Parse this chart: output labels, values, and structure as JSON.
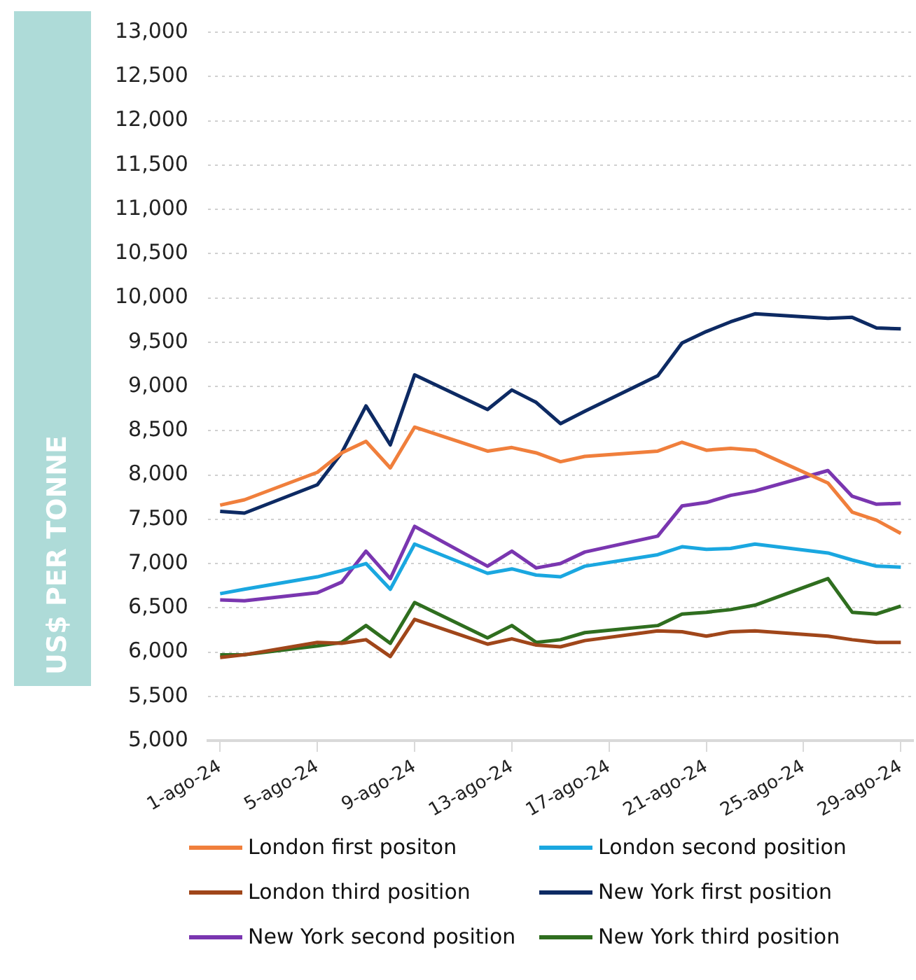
{
  "chart_data": {
    "type": "line",
    "ylabel": "US$ PER TONNE",
    "x": [
      "--08-01",
      "--08-02",
      "--08-05",
      "--08-06",
      "--08-07",
      "--08-08",
      "--08-09",
      "--08-12",
      "--08-13",
      "--08-14",
      "--08-15",
      "--08-16",
      "--08-19",
      "--08-20",
      "--08-21",
      "--08-22",
      "--08-23",
      "--08-26",
      "--08-27",
      "--08-28",
      "--08-29"
    ],
    "series": [
      {
        "name": "London first positon",
        "color": "#f07f3c",
        "values": [
          7660,
          7720,
          8030,
          8250,
          8380,
          8080,
          8540,
          8270,
          8310,
          8250,
          8150,
          8210,
          8270,
          8370,
          8280,
          8300,
          8280,
          7910,
          7580,
          7490,
          7340
        ]
      },
      {
        "name": "London second position",
        "color": "#1aa7e0",
        "values": [
          6660,
          6710,
          6850,
          6920,
          7000,
          6710,
          7220,
          6890,
          6940,
          6870,
          6850,
          6970,
          7100,
          7190,
          7160,
          7170,
          7220,
          7120,
          7040,
          6970,
          6960
        ]
      },
      {
        "name": "London third position",
        "color": "#a0461a",
        "values": [
          5940,
          5970,
          6110,
          6100,
          6140,
          5950,
          6370,
          6090,
          6150,
          6080,
          6060,
          6130,
          6240,
          6230,
          6180,
          6230,
          6240,
          6180,
          6140,
          6110,
          6110
        ]
      },
      {
        "name": "New York first position",
        "color": "#0d2a63",
        "values": [
          7590,
          7570,
          7890,
          8250,
          8780,
          8340,
          9130,
          8740,
          8960,
          8820,
          8580,
          8720,
          9120,
          9490,
          9620,
          9730,
          9820,
          9770,
          9780,
          9660,
          9650
        ]
      },
      {
        "name": "New York second position",
        "color": "#7a36b0",
        "values": [
          6590,
          6580,
          6670,
          6790,
          7140,
          6830,
          7420,
          6970,
          7140,
          6950,
          7000,
          7130,
          7310,
          7650,
          7690,
          7770,
          7820,
          8050,
          7760,
          7670,
          7680
        ]
      },
      {
        "name": "New York third position",
        "color": "#2f6e1f",
        "values": [
          5970,
          5970,
          6070,
          6110,
          6300,
          6100,
          6560,
          6160,
          6300,
          6110,
          6140,
          6220,
          6300,
          6430,
          6450,
          6480,
          6530,
          6830,
          6450,
          6430,
          6520
        ]
      }
    ],
    "xlim": [
      "--07-31T12:00",
      "--08-29T12:00"
    ],
    "xticks": [
      {
        "value": "--08-01",
        "label": "1-ago-24"
      },
      {
        "value": "--08-05",
        "label": "5-ago-24"
      },
      {
        "value": "--08-09",
        "label": "9-ago-24"
      },
      {
        "value": "--08-13",
        "label": "13-ago-24"
      },
      {
        "value": "--08-17",
        "label": "17-ago-24"
      },
      {
        "value": "--08-21",
        "label": "21-ago-24"
      },
      {
        "value": "--08-25",
        "label": "25-ago-24"
      },
      {
        "value": "--08-29",
        "label": "29-ago-24"
      }
    ],
    "ylim": [
      5000,
      13000
    ],
    "yticks": [
      {
        "value": 5000,
        "label": "5,000"
      },
      {
        "value": 5500,
        "label": "5,500"
      },
      {
        "value": 6000,
        "label": "6,000"
      },
      {
        "value": 6500,
        "label": "6,500"
      },
      {
        "value": 7000,
        "label": "7,000"
      },
      {
        "value": 7500,
        "label": "7,500"
      },
      {
        "value": 8000,
        "label": "8,000"
      },
      {
        "value": 8500,
        "label": "8,500"
      },
      {
        "value": 9000,
        "label": "9,000"
      },
      {
        "value": 9500,
        "label": "9,500"
      },
      {
        "value": 10000,
        "label": "10,000"
      },
      {
        "value": 10500,
        "label": "10,500"
      },
      {
        "value": 11000,
        "label": "11,000"
      },
      {
        "value": 11500,
        "label": "11,500"
      },
      {
        "value": 12000,
        "label": "12,000"
      },
      {
        "value": 12500,
        "label": "12,500"
      },
      {
        "value": 13000,
        "label": "13,000"
      }
    ],
    "grid": "y",
    "legend": "bottom",
    "marker": "none",
    "line_style": "solid"
  }
}
